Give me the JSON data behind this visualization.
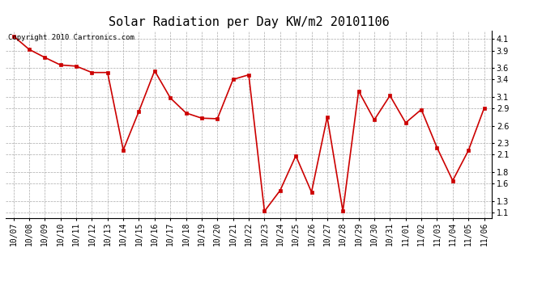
{
  "title": "Solar Radiation per Day KW/m2 20101106",
  "copyright_text": "Copyright 2010 Cartronics.com",
  "dates": [
    "10/07",
    "10/08",
    "10/09",
    "10/10",
    "10/11",
    "10/12",
    "10/13",
    "10/14",
    "10/15",
    "10/16",
    "10/17",
    "10/18",
    "10/19",
    "10/20",
    "10/21",
    "10/22",
    "10/23",
    "10/24",
    "10/25",
    "10/26",
    "10/27",
    "10/28",
    "10/29",
    "10/30",
    "10/31",
    "11/01",
    "11/02",
    "11/03",
    "11/04",
    "11/05",
    "11/06"
  ],
  "values": [
    4.15,
    3.92,
    3.78,
    3.65,
    3.63,
    3.52,
    3.52,
    2.18,
    2.85,
    3.55,
    3.08,
    2.82,
    2.73,
    2.72,
    3.4,
    3.48,
    1.12,
    1.48,
    2.08,
    1.45,
    2.75,
    1.12,
    3.2,
    2.7,
    3.12,
    2.65,
    2.88,
    2.22,
    1.65,
    2.17,
    2.9
  ],
  "line_color": "#cc0000",
  "marker_color": "#cc0000",
  "background_color": "#ffffff",
  "grid_color": "#aaaaaa",
  "ylim": [
    1.0,
    4.25
  ],
  "yticks": [
    1.1,
    1.3,
    1.6,
    1.8,
    2.1,
    2.3,
    2.6,
    2.9,
    3.1,
    3.4,
    3.6,
    3.9,
    4.1
  ],
  "title_fontsize": 11,
  "tick_fontsize": 7,
  "copyright_fontsize": 6.5
}
